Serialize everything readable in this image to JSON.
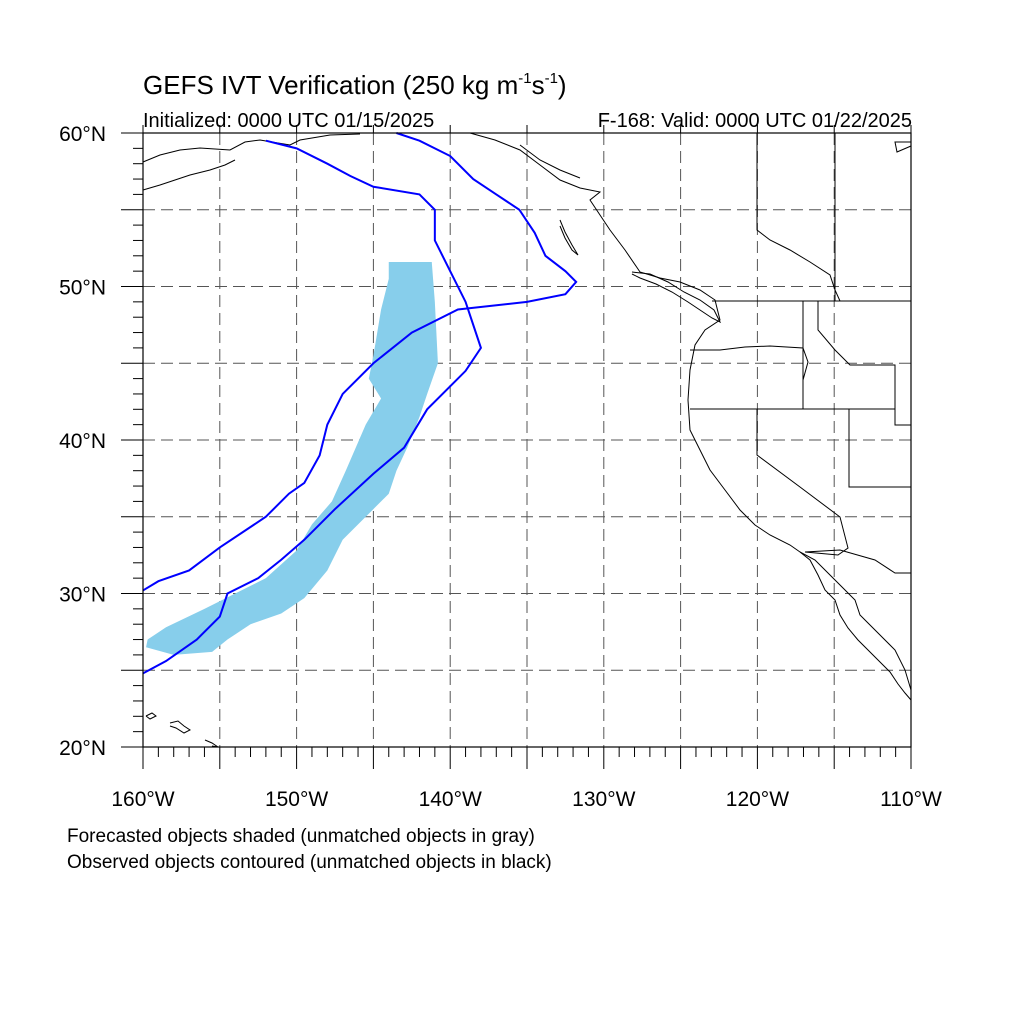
{
  "title": {
    "prefix": "GEFS IVT Verification (250 kg m",
    "exp1": "-1",
    "mid": "s",
    "exp2": "-1",
    "suffix": ")"
  },
  "subtitle_left": "Initialized: 0000 UTC 01/15/2025",
  "subtitle_right": "F-168: Valid: 0000 UTC 01/22/2025",
  "map": {
    "projection": "cylindrical-equidistant",
    "lon_range": [
      -160,
      -110
    ],
    "lat_range": [
      20,
      60
    ],
    "grid": "dashed every 5 degrees",
    "lon_tick_labels": [
      "160°W",
      "150°W",
      "140°W",
      "130°W",
      "120°W",
      "110°W"
    ],
    "lat_tick_labels": [
      "20°N",
      "30°N",
      "40°N",
      "50°N",
      "60°N"
    ],
    "colors": {
      "forecast_fill": "#87ceeb",
      "observed_contour": "#0000ff",
      "coastline": "#000000",
      "grid": "#555555"
    }
  },
  "notes": [
    "Forecasted objects shaded (unmatched objects in gray)",
    "Observed objects contoured (unmatched objects in black)"
  ],
  "forecast_object": {
    "description_lonlat_outline": [
      [
        -159.7,
        27.0
      ],
      [
        -158.5,
        27.8
      ],
      [
        -156.0,
        29.0
      ],
      [
        -154.0,
        30.0
      ],
      [
        -152.0,
        31.0
      ],
      [
        -150.0,
        32.8
      ],
      [
        -149.0,
        34.5
      ],
      [
        -147.7,
        36.0
      ],
      [
        -146.8,
        38.0
      ],
      [
        -145.5,
        41.0
      ],
      [
        -144.5,
        42.7
      ],
      [
        -145.3,
        44.0
      ],
      [
        -145.0,
        45.5
      ],
      [
        -144.5,
        48.5
      ],
      [
        -144.0,
        50.5
      ],
      [
        -144.0,
        51.6
      ],
      [
        -141.2,
        51.6
      ],
      [
        -141.0,
        49.0
      ],
      [
        -140.8,
        45.0
      ],
      [
        -141.5,
        43.0
      ],
      [
        -142.0,
        41.5
      ],
      [
        -142.8,
        39.5
      ],
      [
        -143.5,
        38.0
      ],
      [
        -144.0,
        36.5
      ],
      [
        -145.0,
        35.5
      ],
      [
        -147.0,
        33.5
      ],
      [
        -148.0,
        31.5
      ],
      [
        -149.5,
        29.7
      ],
      [
        -151.0,
        28.7
      ],
      [
        -153.0,
        28.0
      ],
      [
        -154.5,
        27.0
      ],
      [
        -155.5,
        26.2
      ],
      [
        -158.0,
        26.0
      ],
      [
        -159.8,
        26.5
      ]
    ]
  },
  "observed_objects": {
    "outer": [
      [
        -160.0,
        30.2
      ],
      [
        -159.0,
        30.8
      ],
      [
        -157.0,
        31.5
      ],
      [
        -155.0,
        33.0
      ],
      [
        -152.0,
        35.0
      ],
      [
        -150.5,
        36.5
      ],
      [
        -149.5,
        37.2
      ],
      [
        -148.5,
        39.0
      ],
      [
        -148.0,
        41.0
      ],
      [
        -147.0,
        43.0
      ],
      [
        -145.0,
        45.0
      ],
      [
        -142.5,
        47.0
      ],
      [
        -139.5,
        48.5
      ],
      [
        -135.0,
        49.0
      ],
      [
        -132.5,
        49.5
      ],
      [
        -131.8,
        50.3
      ],
      [
        -132.5,
        51.0
      ],
      [
        -133.8,
        52.0
      ],
      [
        -134.5,
        53.5
      ],
      [
        -135.5,
        55.0
      ],
      [
        -137.0,
        56.0
      ],
      [
        -138.5,
        57.0
      ],
      [
        -140.0,
        58.5
      ],
      [
        -142.0,
        59.5
      ],
      [
        -143.5,
        60.0
      ]
    ],
    "inner": [
      [
        -160.0,
        24.8
      ],
      [
        -158.5,
        25.6
      ],
      [
        -156.5,
        27.0
      ],
      [
        -155.0,
        28.5
      ],
      [
        -154.5,
        30.0
      ],
      [
        -152.5,
        31.0
      ],
      [
        -151.0,
        32.2
      ],
      [
        -149.5,
        33.5
      ],
      [
        -147.5,
        35.5
      ],
      [
        -145.0,
        37.8
      ],
      [
        -143.0,
        39.5
      ],
      [
        -141.5,
        42.0
      ],
      [
        -139.0,
        44.5
      ],
      [
        -138.0,
        46.0
      ],
      [
        -138.5,
        47.5
      ],
      [
        -139.0,
        49.0
      ],
      [
        -140.0,
        51.0
      ],
      [
        -141.0,
        53.0
      ],
      [
        -141.0,
        55.0
      ],
      [
        -142.0,
        56.0
      ],
      [
        -145.0,
        56.5
      ],
      [
        -146.5,
        57.2
      ],
      [
        -148.0,
        58.0
      ],
      [
        -150.0,
        59.0
      ],
      [
        -152.0,
        59.5
      ]
    ]
  }
}
